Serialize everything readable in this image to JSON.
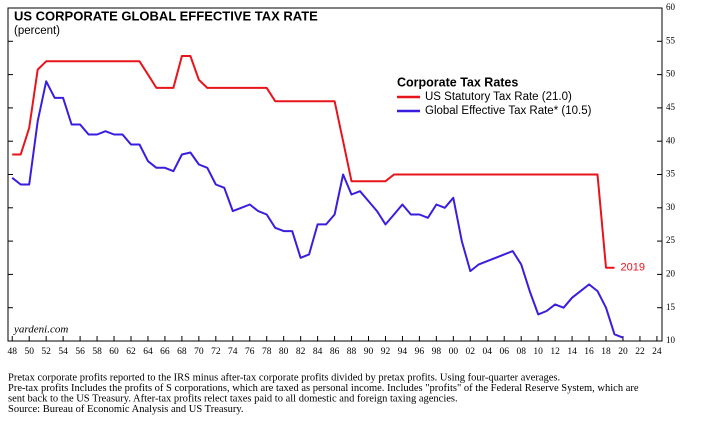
{
  "chart_data": {
    "type": "line",
    "title": "US CORPORATE GLOBAL EFFECTIVE TAX RATE",
    "subtitle": "(percent)",
    "legend_title": "Corporate Tax Rates",
    "source_label": "yardeni.com",
    "annotation": "2019",
    "series": [
      {
        "name": "US Statutory Tax Rate (21.0)",
        "color": "#e8141c",
        "x": [
          1948,
          1949,
          1950,
          1951,
          1952,
          1953,
          1954,
          1955,
          1956,
          1957,
          1958,
          1959,
          1960,
          1961,
          1962,
          1963,
          1964,
          1965,
          1966,
          1967,
          1968,
          1969,
          1970,
          1971,
          1972,
          1973,
          1974,
          1975,
          1976,
          1977,
          1978,
          1979,
          1980,
          1981,
          1982,
          1983,
          1984,
          1985,
          1986,
          1987,
          1988,
          1989,
          1990,
          1991,
          1992,
          1993,
          1994,
          1995,
          1996,
          1997,
          1998,
          1999,
          2000,
          2001,
          2002,
          2003,
          2004,
          2005,
          2006,
          2007,
          2008,
          2009,
          2010,
          2011,
          2012,
          2013,
          2014,
          2015,
          2016,
          2017,
          2018,
          2019
        ],
        "values": [
          38,
          38,
          42,
          50.75,
          52,
          52,
          52,
          52,
          52,
          52,
          52,
          52,
          52,
          52,
          52,
          52,
          50,
          48,
          48,
          48,
          52.8,
          52.8,
          49.2,
          48,
          48,
          48,
          48,
          48,
          48,
          48,
          48,
          46,
          46,
          46,
          46,
          46,
          46,
          46,
          46,
          40,
          34,
          34,
          34,
          34,
          34,
          35,
          35,
          35,
          35,
          35,
          35,
          35,
          35,
          35,
          35,
          35,
          35,
          35,
          35,
          35,
          35,
          35,
          35,
          35,
          35,
          35,
          35,
          35,
          35,
          35,
          21,
          21
        ]
      },
      {
        "name": "Global Effective Tax Rate* (10.5)",
        "color": "#3a1ee0",
        "x": [
          1948,
          1949,
          1950,
          1951,
          1952,
          1953,
          1954,
          1955,
          1956,
          1957,
          1958,
          1959,
          1960,
          1961,
          1962,
          1963,
          1964,
          1965,
          1966,
          1967,
          1968,
          1969,
          1970,
          1971,
          1972,
          1973,
          1974,
          1975,
          1976,
          1977,
          1978,
          1979,
          1980,
          1981,
          1982,
          1983,
          1984,
          1985,
          1986,
          1987,
          1988,
          1989,
          1990,
          1991,
          1992,
          1993,
          1994,
          1995,
          1996,
          1997,
          1998,
          1999,
          2000,
          2001,
          2002,
          2003,
          2004,
          2005,
          2006,
          2007,
          2008,
          2009,
          2010,
          2011,
          2012,
          2013,
          2014,
          2015,
          2016,
          2017,
          2018,
          2019,
          2020
        ],
        "values": [
          34.5,
          33.5,
          33.5,
          43,
          49,
          46.5,
          46.5,
          42.5,
          42.5,
          41,
          41,
          41.5,
          41,
          41,
          39.5,
          39.5,
          37,
          36,
          36,
          35.5,
          38,
          38.3,
          36.5,
          36,
          33.5,
          33,
          29.5,
          30,
          30.5,
          29.5,
          29,
          27,
          26.5,
          26.5,
          22.5,
          23,
          27.5,
          27.5,
          29,
          35,
          32,
          32.5,
          31,
          29.5,
          27.5,
          29,
          30.5,
          29,
          29,
          28.5,
          30.5,
          30,
          31.5,
          25,
          20.5,
          21.5,
          22,
          22.5,
          23,
          23.5,
          21.5,
          17.5,
          14,
          14.5,
          15.5,
          15,
          16.5,
          17.5,
          18.5,
          17.5,
          15,
          11,
          10.5
        ]
      }
    ],
    "xlim": [
      1947.5,
      2024.6
    ],
    "xticks": [
      {
        "value": 1948,
        "label": "48"
      },
      {
        "value": 1950,
        "label": "50"
      },
      {
        "value": 1952,
        "label": "52"
      },
      {
        "value": 1954,
        "label": "54"
      },
      {
        "value": 1956,
        "label": "56"
      },
      {
        "value": 1958,
        "label": "58"
      },
      {
        "value": 1960,
        "label": "60"
      },
      {
        "value": 1962,
        "label": "62"
      },
      {
        "value": 1964,
        "label": "64"
      },
      {
        "value": 1966,
        "label": "66"
      },
      {
        "value": 1968,
        "label": "68"
      },
      {
        "value": 1970,
        "label": "70"
      },
      {
        "value": 1972,
        "label": "72"
      },
      {
        "value": 1974,
        "label": "74"
      },
      {
        "value": 1976,
        "label": "76"
      },
      {
        "value": 1978,
        "label": "78"
      },
      {
        "value": 1980,
        "label": "80"
      },
      {
        "value": 1982,
        "label": "82"
      },
      {
        "value": 1984,
        "label": "84"
      },
      {
        "value": 1986,
        "label": "86"
      },
      {
        "value": 1988,
        "label": "88"
      },
      {
        "value": 1990,
        "label": "90"
      },
      {
        "value": 1992,
        "label": "92"
      },
      {
        "value": 1994,
        "label": "94"
      },
      {
        "value": 1996,
        "label": "96"
      },
      {
        "value": 1998,
        "label": "98"
      },
      {
        "value": 2000,
        "label": "00"
      },
      {
        "value": 2002,
        "label": "02"
      },
      {
        "value": 2004,
        "label": "04"
      },
      {
        "value": 2006,
        "label": "06"
      },
      {
        "value": 2008,
        "label": "08"
      },
      {
        "value": 2010,
        "label": "10"
      },
      {
        "value": 2012,
        "label": "12"
      },
      {
        "value": 2014,
        "label": "14"
      },
      {
        "value": 2016,
        "label": "16"
      },
      {
        "value": 2018,
        "label": "18"
      },
      {
        "value": 2020,
        "label": "20"
      },
      {
        "value": 2022,
        "label": "22"
      },
      {
        "value": 2024,
        "label": "24"
      }
    ],
    "ylim": [
      10,
      60
    ],
    "yticks": [
      10,
      15,
      20,
      25,
      30,
      35,
      40,
      45,
      50,
      55,
      60
    ],
    "grid": false,
    "notes": [
      "Pretax corporate profits reported to the IRS minus after-tax corporate profits divided by pretax profits. Using four-quarter averages.",
      "Pre-tax profits Includes the profits of S corporations, which are taxed as personal income. Includes \"profits\" of the Federal Reserve System, which are",
      "sent back to the US Treasury. After-tax profits relect taxes paid to all domestic and foreign taxing agencies.",
      "Source: Bureau of Economic Analysis and US Treasury."
    ]
  }
}
